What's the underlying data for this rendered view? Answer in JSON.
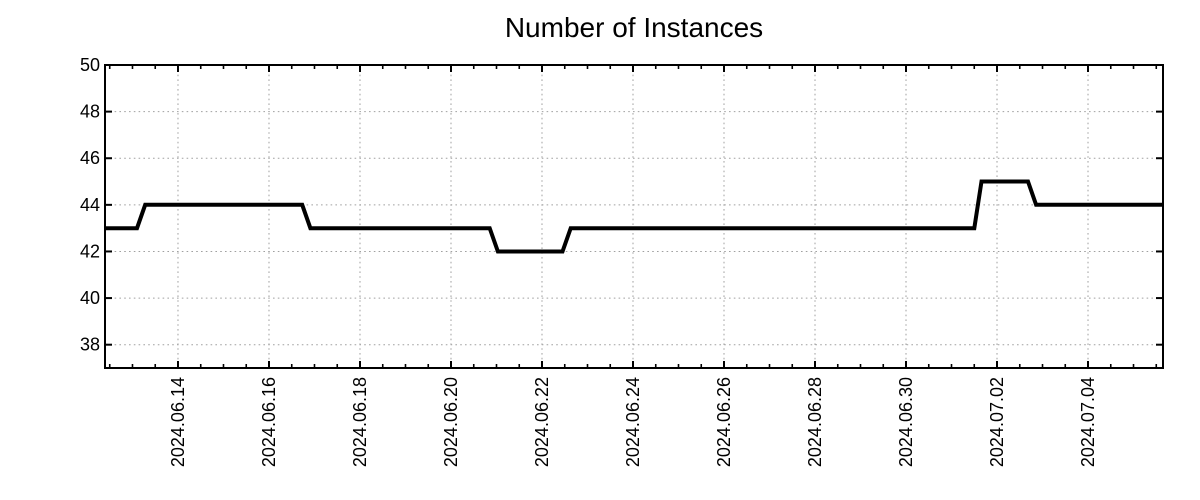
{
  "chart_data": {
    "type": "line",
    "title": "Number of Instances",
    "style": {
      "line_color": "#000000",
      "grid_color": "#a0a0a0",
      "text_color": "#000000",
      "background_color": "#ffffff",
      "grid_style": "dotted grid at major ticks, inward mirrored ticks on all four axes"
    },
    "x_axis": {
      "type": "time",
      "major_tick_labels": [
        "2024.06.14",
        "2024.06.16",
        "2024.06.18",
        "2024.06.20",
        "2024.06.22",
        "2024.06.24",
        "2024.06.26",
        "2024.06.28",
        "2024.06.30",
        "2024.07.02",
        "2024.07.04"
      ],
      "major_tick_offsets_days": [
        0,
        2,
        4,
        6,
        8,
        10,
        12,
        14,
        16,
        18,
        20
      ],
      "minor_tick_step_days": 0.5,
      "xlim_days": [
        -1.604,
        21.648
      ],
      "label_rotation_deg": -90
    },
    "y_axis": {
      "tick_labels": [
        "38",
        "40",
        "42",
        "44",
        "46",
        "48",
        "50"
      ],
      "tick_values": [
        38,
        40,
        42,
        44,
        46,
        48,
        50
      ],
      "ylim": [
        37,
        50
      ]
    },
    "series": [
      {
        "name": "instances",
        "points_days_value": [
          [
            -1.604,
            43
          ],
          [
            -0.9,
            43
          ],
          [
            -0.72,
            44
          ],
          [
            2.73,
            44
          ],
          [
            2.91,
            43
          ],
          [
            6.85,
            43
          ],
          [
            7.03,
            42
          ],
          [
            8.45,
            42
          ],
          [
            8.63,
            43
          ],
          [
            17.5,
            43
          ],
          [
            17.66,
            45
          ],
          [
            18.68,
            45
          ],
          [
            18.86,
            44
          ],
          [
            21.648,
            44
          ]
        ],
        "note": "step line; day offsets are relative to the 2024.06.14 tick; values read off y axis: starts at 43, rises to 44 near 2024.06.13, drops to 43 late 2024.06.16, dips to 42 near 2024.06.21, back to 43 midday 2024.06.22, jumps to 45 midday 2024.07.01, settles at 44 evening 2024.07.02 through end"
      }
    ]
  }
}
